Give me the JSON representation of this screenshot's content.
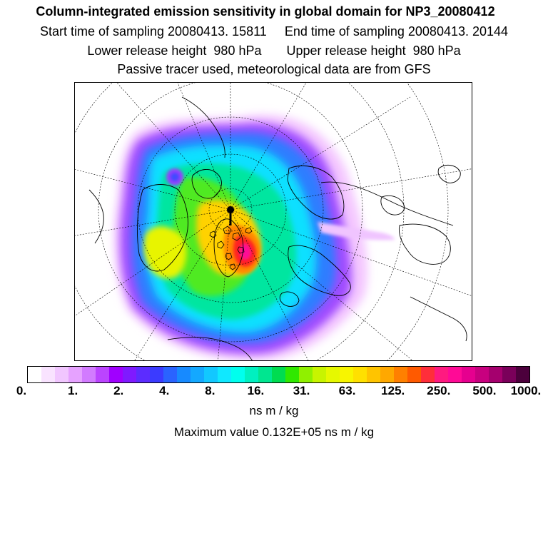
{
  "header": {
    "title": "Column-integrated emission sensitivity in global domain for NP3_20080412",
    "sampling": "Start time of sampling 20080413. 15811     End time of sampling 20080413. 20144",
    "release": "Lower release height  980 hPa       Upper release height  980 hPa",
    "tracer": "Passive tracer used, meteorological data are from GFS"
  },
  "legend": {
    "colors": [
      "#ffffff",
      "#f9e3ff",
      "#f1c6ff",
      "#e6a2ff",
      "#d27bff",
      "#bb44ff",
      "#a000ff",
      "#7f1aff",
      "#5c2cff",
      "#3b3bff",
      "#2a63ff",
      "#178aff",
      "#14a8ff",
      "#12c8ff",
      "#10e8ff",
      "#00ffee",
      "#00f0c0",
      "#00e690",
      "#00dc50",
      "#30e800",
      "#90f000",
      "#c8f400",
      "#e6f800",
      "#f8f500",
      "#ffe000",
      "#ffc400",
      "#ffa800",
      "#ff8000",
      "#ff5a00",
      "#ff2e3a",
      "#ff1a80",
      "#ff0a96",
      "#e6008f",
      "#c8007f",
      "#a5006e",
      "#7a005a",
      "#4c003c"
    ],
    "ticks": [
      "0.",
      "1.",
      "2.",
      "4.",
      "8.",
      "16.",
      "31.",
      "63.",
      "125.",
      "250.",
      "500.",
      "1000."
    ],
    "unit_label": "ns m / kg",
    "max_value_text": "Maximum value  0.132E+05 ns m / kg"
  },
  "map": {
    "projection": "polar stereographic (north)",
    "release_marker": "release-point"
  }
}
